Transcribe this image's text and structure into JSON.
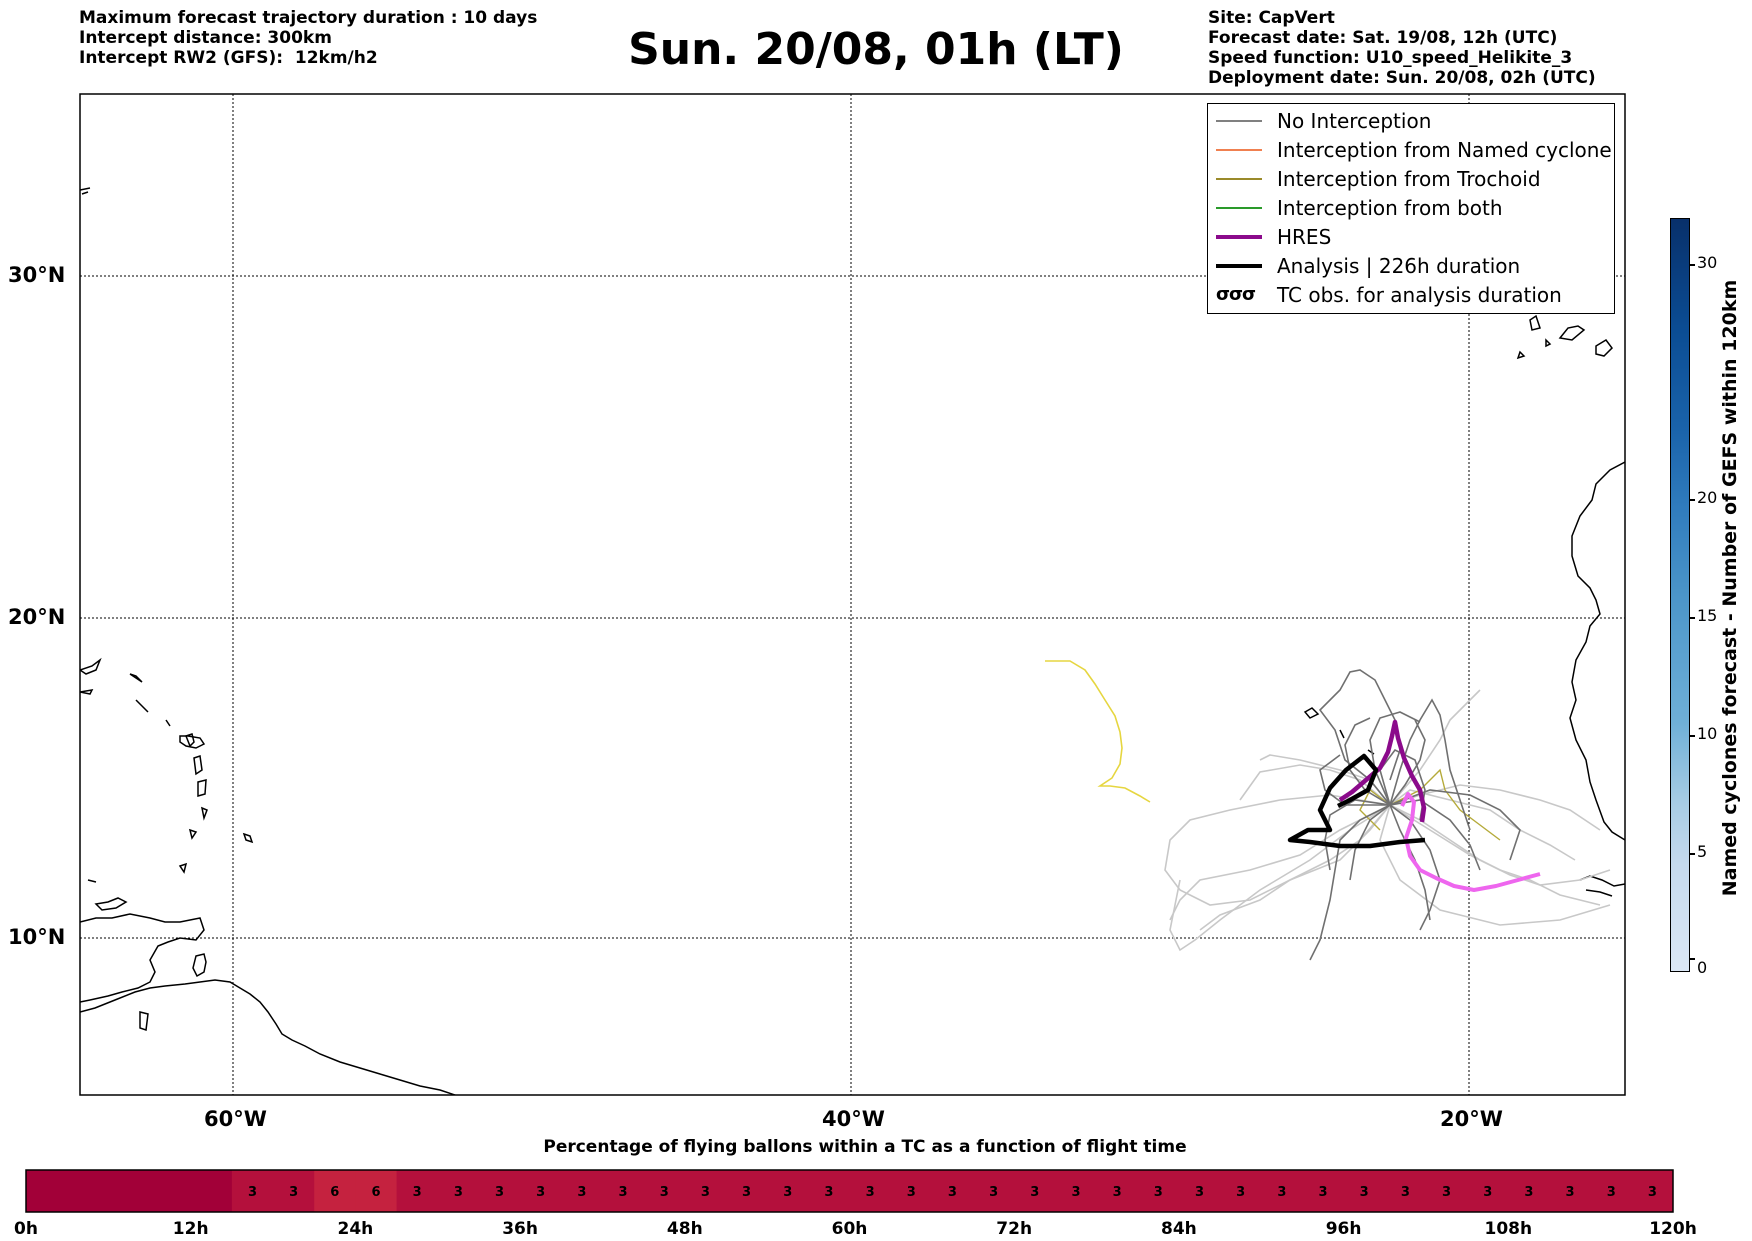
{
  "header_left": {
    "line1": "Maximum forecast trajectory duration : 10 days",
    "line2": "Intercept distance: 300km",
    "line3": "Intercept RW2 (GFS):  12km/h2"
  },
  "title": "Sun. 20/08, 01h (LT)",
  "header_right": {
    "line1": "Site: CapVert",
    "line2": "Forecast date: Sat. 19/08, 12h (UTC)",
    "line3": "Speed function: U10_speed_Helikite_3",
    "line4": "Deployment date: Sun. 20/08, 02h (UTC)"
  },
  "map": {
    "lon_range": [
      -65,
      15
    ],
    "lat_range": [
      5.5,
      35.0
    ],
    "lat_labels": [
      "30°N",
      "20°N",
      "10°N"
    ],
    "lon_labels": [
      "60°W",
      "40°W",
      "20°W"
    ],
    "gridlines": "dotted"
  },
  "legend": {
    "items": [
      {
        "label": "No Interception",
        "color": "#808080"
      },
      {
        "label": "Interception from Named cyclone",
        "color": "#f08050"
      },
      {
        "label": "Interception from Trochoid",
        "color": "#9a8a2a"
      },
      {
        "label": "Interception from both",
        "color": "#2a9a2a"
      },
      {
        "label": "HRES",
        "color": "#8b0a8b"
      },
      {
        "label": "Analysis | 226h duration",
        "color": "#000000"
      },
      {
        "label": "TC obs. for analysis duration",
        "color": "#000000"
      }
    ]
  },
  "colorbar": {
    "label": "Named cyclones forecast - Number of GEFS within 120km",
    "ticks": [
      "0",
      "5",
      "10",
      "15",
      "20",
      "30"
    ],
    "color_low": "#dde8f5",
    "color_high": "#08306b"
  },
  "bottom_chart": {
    "title": "Percentage of flying ballons within a TC as a function of flight time",
    "tick_labels": [
      "0h",
      "12h",
      "24h",
      "36h",
      "48h",
      "60h",
      "72h",
      "84h",
      "96h",
      "108h",
      "120h"
    ],
    "cell_values": [
      "",
      "",
      "",
      "",
      "",
      "3",
      "3",
      "6",
      "6",
      "3",
      "3",
      "3",
      "3",
      "3",
      "3",
      "3",
      "3",
      "3",
      "3",
      "3",
      "3",
      "3",
      "3",
      "3",
      "3",
      "3",
      "3",
      "3",
      "3",
      "3",
      "3",
      "3",
      "3",
      "3",
      "3",
      "3",
      "3",
      "3",
      "3",
      "3"
    ],
    "color_empty": "#a20038",
    "color_3": "#b4103c",
    "color_6": "#c5223f"
  }
}
